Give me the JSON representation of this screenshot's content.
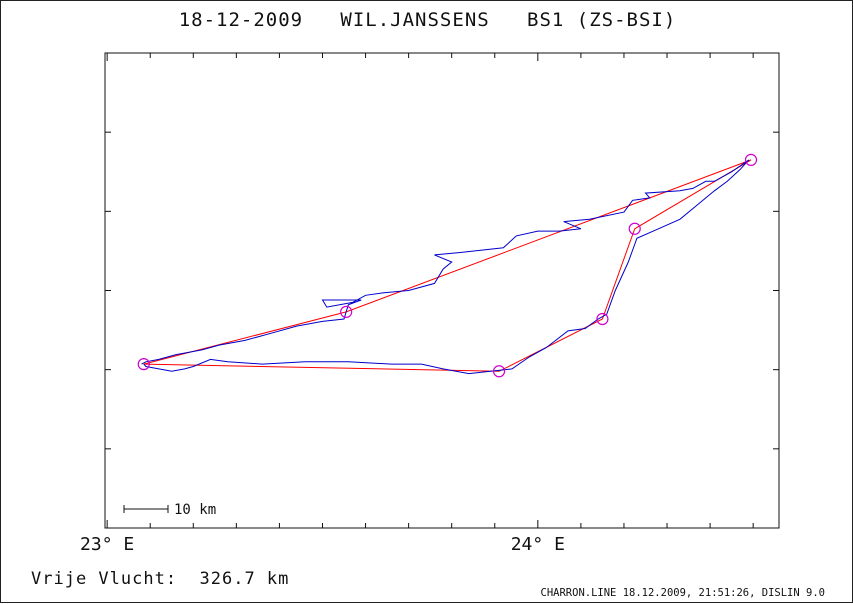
{
  "title": "18-12-2009   WIL.JANSSENS   BS1 (ZS-BSI)",
  "summary": "Vrije Vlucht:  326.7 km",
  "footer": "CHARRON.LINE 18.12.2009, 21:51:26, DISLIN 9.0",
  "colors": {
    "track": "#0000cc",
    "task": "#ff0000",
    "turnpoint": "#d000d0",
    "frame": "#111111"
  },
  "chart_data": {
    "type": "line",
    "title": "18-12-2009   WIL.JANSSENS   BS1 (ZS-BSI)",
    "xlabel": "",
    "ylabel": "",
    "x_ticks": [
      {
        "value": 23.0,
        "label": "23° E"
      },
      {
        "value": 24.0,
        "label": "24° E"
      }
    ],
    "xlim": [
      22.995,
      24.56
    ],
    "y_ticks_count": 5,
    "scale_bar": {
      "label": "10 km"
    },
    "series": [
      {
        "kind": "task-line",
        "x": [
          23.085,
          23.555,
          24.495,
          24.225,
          24.15,
          23.91,
          23.085
        ],
        "y": [
          0.345,
          0.455,
          0.775,
          0.63,
          0.44,
          0.33,
          0.345
        ]
      },
      {
        "kind": "flight-track",
        "x": [
          23.08,
          23.09,
          23.12,
          23.16,
          23.19,
          23.22,
          23.26,
          23.32,
          23.38,
          23.44,
          23.5,
          23.55,
          23.56,
          23.59,
          23.5,
          23.51,
          23.57,
          23.6,
          23.64,
          23.7,
          23.76,
          23.78,
          23.8,
          23.76,
          23.82,
          23.92,
          23.95,
          24.0,
          24.05,
          24.1,
          24.06,
          24.12,
          24.2,
          24.22,
          24.26,
          24.25,
          24.33,
          24.36,
          24.39,
          24.41,
          24.45,
          24.49,
          24.48,
          24.47,
          24.44,
          24.41,
          24.37,
          24.33,
          24.28,
          24.23,
          24.21,
          24.18,
          24.16,
          24.14,
          24.11,
          24.07,
          24.02,
          23.98,
          23.94,
          23.89,
          23.84,
          23.78,
          23.73,
          23.66,
          23.56,
          23.46,
          23.36,
          23.28,
          23.24,
          23.2,
          23.18,
          23.15,
          23.12,
          23.09,
          23.085
        ],
        "y": [
          0.345,
          0.35,
          0.355,
          0.365,
          0.37,
          0.375,
          0.385,
          0.395,
          0.41,
          0.425,
          0.435,
          0.44,
          0.47,
          0.48,
          0.48,
          0.465,
          0.475,
          0.49,
          0.495,
          0.5,
          0.515,
          0.545,
          0.56,
          0.575,
          0.58,
          0.59,
          0.615,
          0.625,
          0.625,
          0.63,
          0.645,
          0.65,
          0.665,
          0.69,
          0.695,
          0.705,
          0.71,
          0.715,
          0.73,
          0.73,
          0.75,
          0.775,
          0.765,
          0.755,
          0.73,
          0.71,
          0.68,
          0.65,
          0.63,
          0.61,
          0.56,
          0.5,
          0.45,
          0.44,
          0.42,
          0.415,
          0.38,
          0.36,
          0.335,
          0.33,
          0.325,
          0.335,
          0.345,
          0.345,
          0.35,
          0.35,
          0.345,
          0.35,
          0.355,
          0.34,
          0.335,
          0.33,
          0.335,
          0.34,
          0.345
        ]
      }
    ],
    "turnpoints": [
      {
        "x": 23.085,
        "y": 0.345
      },
      {
        "x": 23.555,
        "y": 0.455
      },
      {
        "x": 24.495,
        "y": 0.775
      },
      {
        "x": 24.225,
        "y": 0.63
      },
      {
        "x": 24.15,
        "y": 0.44
      },
      {
        "x": 23.91,
        "y": 0.33
      }
    ]
  }
}
